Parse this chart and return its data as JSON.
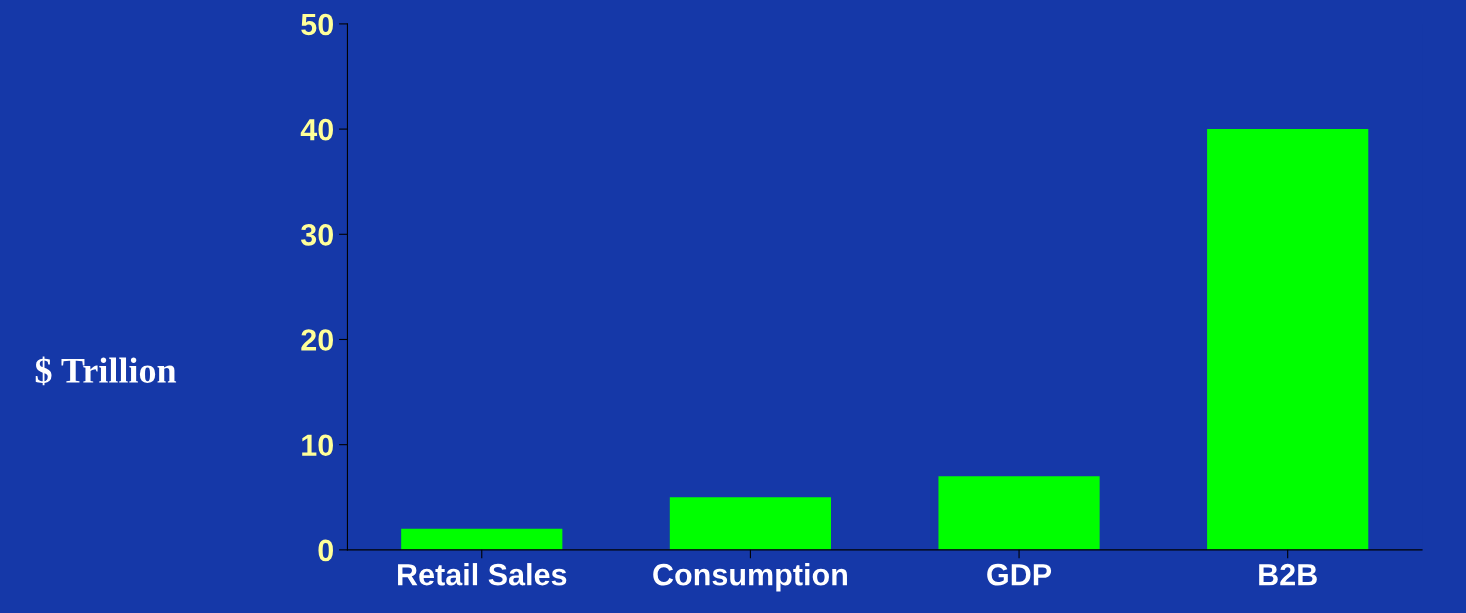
{
  "chart_data": {
    "type": "bar",
    "ylabel": "$ Trillion",
    "categories": [
      "Retail Sales",
      "Consumption",
      "GDP",
      "B2B"
    ],
    "values": [
      2,
      5,
      7,
      40
    ],
    "color": "#00ff00",
    "ylim": [
      0,
      50
    ],
    "yticks": [
      0,
      10,
      20,
      30,
      40,
      50
    ],
    "grid": false
  }
}
